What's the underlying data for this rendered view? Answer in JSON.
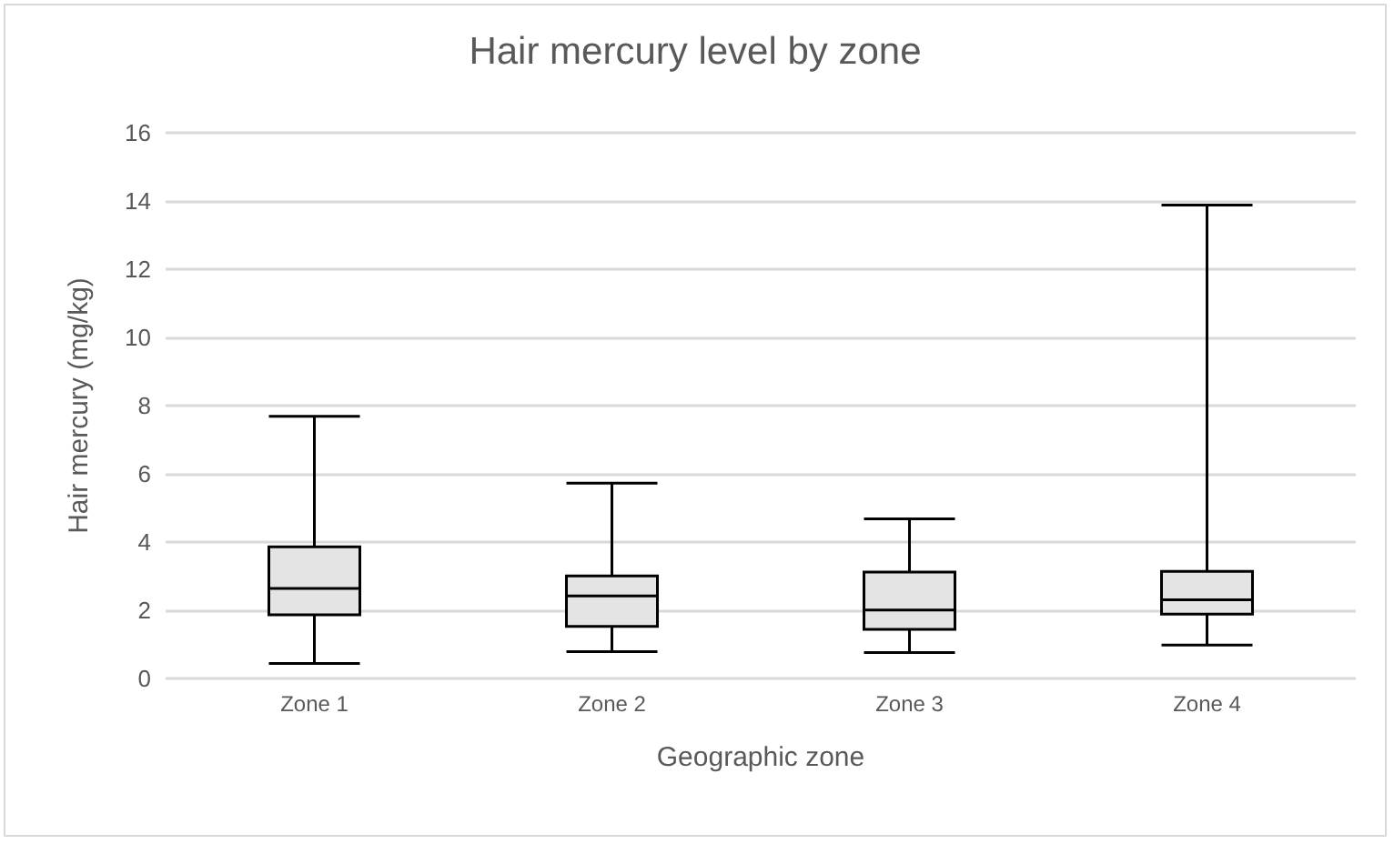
{
  "chart_data": {
    "type": "box",
    "title": "Hair mercury level by zone",
    "xlabel": "Geographic zone",
    "ylabel": "Hair mercury (mg/kg)",
    "categories": [
      "Zone 1",
      "Zone 2",
      "Zone 3",
      "Zone 4"
    ],
    "boxes": [
      {
        "low": 0.44,
        "q1": 1.87,
        "median": 2.64,
        "q3": 3.86,
        "high": 7.69
      },
      {
        "low": 0.79,
        "q1": 1.53,
        "median": 2.42,
        "q3": 3.01,
        "high": 5.73
      },
      {
        "low": 0.76,
        "q1": 1.44,
        "median": 2.01,
        "q3": 3.12,
        "high": 4.68
      },
      {
        "low": 0.98,
        "q1": 1.89,
        "median": 2.31,
        "q3": 3.14,
        "high": 13.88
      }
    ],
    "color": "#e4e4e4",
    "ylim": [
      0,
      16
    ],
    "yticks": [
      0,
      2,
      4,
      6,
      8,
      10,
      12,
      14,
      16
    ],
    "grid": "y",
    "legend": false
  }
}
